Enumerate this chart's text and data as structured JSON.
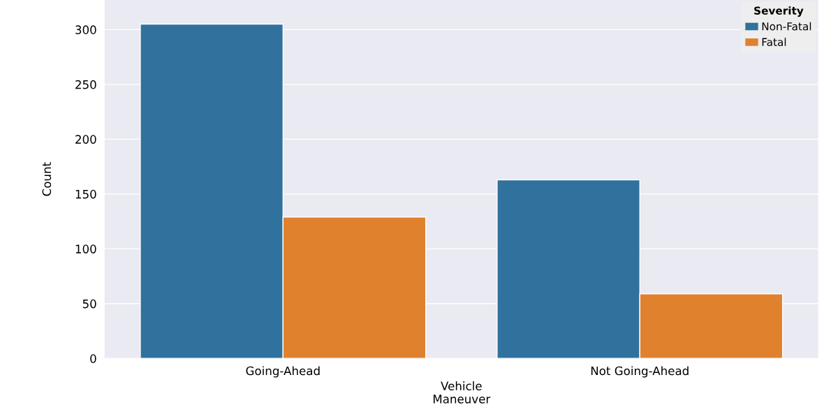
{
  "chart_data": {
    "type": "bar",
    "xlabel": "Vehicle\nManeuver",
    "ylabel": "Count",
    "legend_title": "Severity",
    "categories": [
      "Going-Ahead",
      "Not Going-Ahead"
    ],
    "series": [
      {
        "name": "Non-Fatal",
        "color": "#31719e",
        "values": [
          305,
          163
        ]
      },
      {
        "name": "Fatal",
        "color": "#e0812e",
        "values": [
          129,
          59
        ]
      }
    ],
    "ylim": [
      0,
      327
    ],
    "yticks": [
      0,
      50,
      100,
      150,
      200,
      250,
      300
    ],
    "grid": "y",
    "legend": "top right"
  }
}
